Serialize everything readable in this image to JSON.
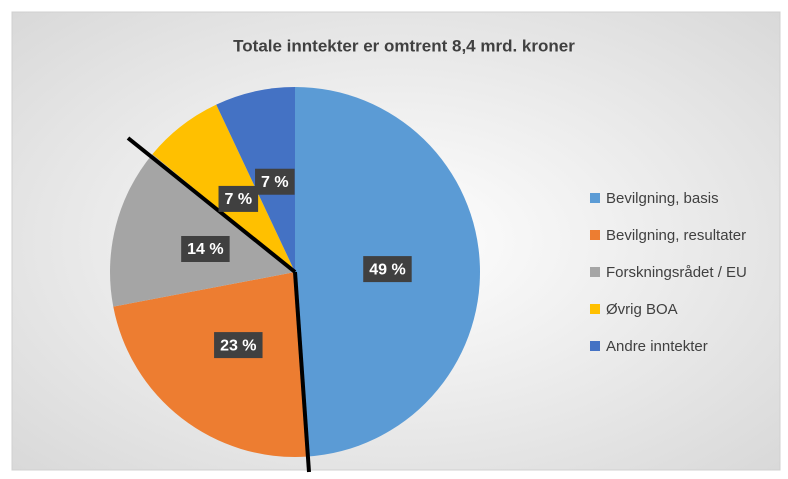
{
  "chart_data": {
    "type": "pie",
    "title": "Totale inntekter er omtrent 8,4 mrd. kroner",
    "categories": [
      "Bevilgning, basis",
      "Bevilgning, resultater",
      "Forskningsrådet / EU",
      "Øvrig BOA",
      "Andre inntekter"
    ],
    "values": [
      49,
      23,
      14,
      7,
      7
    ],
    "value_labels": [
      "49 %",
      "23 %",
      "14 %",
      "7 %",
      "7 %"
    ],
    "colors": [
      "#5b9bd5",
      "#ed7d31",
      "#a5a5a5",
      "#ffc000",
      "#4472c4"
    ],
    "legend": "right"
  }
}
